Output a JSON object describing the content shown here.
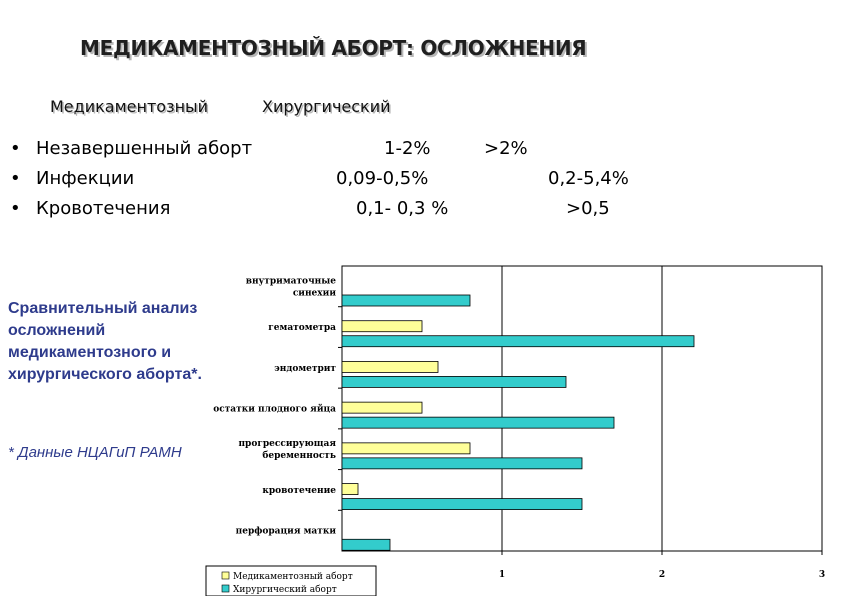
{
  "title": "МЕДИКАМЕНТОЗНЫЙ АБОРТ: ОСЛОЖНЕНИЯ",
  "column_headers": [
    "Медикаментозный",
    "Хирургический"
  ],
  "bullets": [
    {
      "marker": "•",
      "label": "Незавершенный аборт",
      "medical": "1-2%",
      "surgical": ">2%"
    },
    {
      "marker": "•",
      "label": "Инфекции",
      "medical": "0,09-0,5%",
      "surgical": "0,2-5,4%"
    },
    {
      "marker": "•",
      "label": "Кровотечения",
      "medical": "0,1- 0,3 %",
      "surgical": ">0,5"
    }
  ],
  "side_note": "Сравнительный анализ осложнений медикаментозного и хирургического аборта*.",
  "source_note": "* Данные НЦАГиП РАМН",
  "colors": {
    "medical": "#ffff99",
    "surgical": "#33cccc",
    "note_text": "#2e3b8c"
  },
  "chart_data": {
    "type": "bar",
    "orientation": "horizontal",
    "categories": [
      [
        "внутриматочные",
        "синехии"
      ],
      [
        "гематометра"
      ],
      [
        "эндометрит"
      ],
      [
        "остатки плодного яйца"
      ],
      [
        "прогрессирующая",
        "беременность"
      ],
      [
        "кровотечение"
      ],
      [
        "перфорация матки"
      ]
    ],
    "series": [
      {
        "name": "Медикаментозный аборт",
        "values": [
          0,
          0.5,
          0.6,
          0.5,
          0.8,
          0.1,
          0
        ]
      },
      {
        "name": "Хирургический аборт",
        "values": [
          0.8,
          2.2,
          1.4,
          1.7,
          1.5,
          1.5,
          0.3
        ]
      }
    ],
    "xlim": [
      0,
      3
    ],
    "xticks": [
      "1",
      "2",
      "3"
    ],
    "grid": "vertical major gridlines",
    "legend": "bottom-left"
  }
}
